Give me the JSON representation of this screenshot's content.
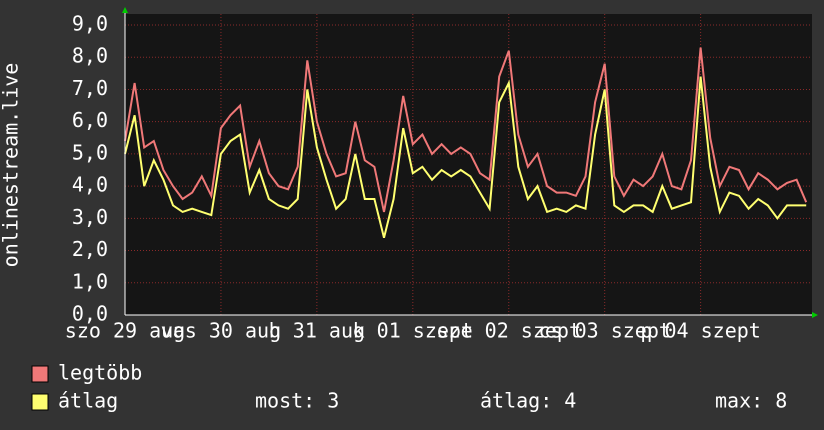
{
  "chart_data": {
    "type": "line",
    "ylabel": "onlinestream.live",
    "x": [
      0,
      0.1,
      0.2,
      0.3,
      0.4,
      0.5,
      0.6,
      0.7,
      0.8,
      0.9,
      1,
      1.1,
      1.2,
      1.3,
      1.4,
      1.5,
      1.6,
      1.7,
      1.8,
      1.9,
      2,
      2.1,
      2.2,
      2.3,
      2.4,
      2.5,
      2.6,
      2.7,
      2.8,
      2.9,
      3,
      3.1,
      3.2,
      3.3,
      3.4,
      3.5,
      3.6,
      3.7,
      3.8,
      3.9,
      4,
      4.1,
      4.2,
      4.3,
      4.4,
      4.5,
      4.6,
      4.7,
      4.8,
      4.9,
      5,
      5.1,
      5.2,
      5.3,
      5.4,
      5.5,
      5.6,
      5.7,
      5.8,
      5.9,
      6,
      6.1,
      6.2,
      6.3,
      6.4,
      6.5,
      6.6,
      6.7,
      6.8,
      6.9,
      7,
      7.1
    ],
    "xlim": [
      0,
      7.14
    ],
    "xticks": [
      {
        "value": 0,
        "label": "szo 29 aug"
      },
      {
        "value": 1,
        "label": "vas 30 aug"
      },
      {
        "value": 2,
        "label": "h 31 aug"
      },
      {
        "value": 3,
        "label": "k 01 szept"
      },
      {
        "value": 4,
        "label": "sze 02 szept"
      },
      {
        "value": 5,
        "label": "cs 03 szept"
      },
      {
        "value": 6,
        "label": "p 04 szept"
      }
    ],
    "ylim": [
      0,
      9
    ],
    "yticks": [
      {
        "value": 0,
        "label": "0,0"
      },
      {
        "value": 1,
        "label": "1,0"
      },
      {
        "value": 2,
        "label": "2,0"
      },
      {
        "value": 3,
        "label": "3,0"
      },
      {
        "value": 4,
        "label": "4,0"
      },
      {
        "value": 5,
        "label": "5,0"
      },
      {
        "value": 6,
        "label": "6,0"
      },
      {
        "value": 7,
        "label": "7,0"
      },
      {
        "value": 8,
        "label": "8,0"
      },
      {
        "value": 9,
        "label": "9,0"
      }
    ],
    "grid": true,
    "series": [
      {
        "name": "legtöbb",
        "color": "#f07878",
        "values": [
          5.4,
          7.2,
          5.2,
          5.4,
          4.5,
          4.0,
          3.6,
          3.8,
          4.3,
          3.7,
          5.8,
          6.2,
          6.5,
          4.6,
          5.4,
          4.4,
          4.0,
          3.9,
          4.6,
          7.9,
          6.0,
          5.0,
          4.3,
          4.4,
          6.0,
          4.8,
          4.6,
          3.2,
          4.8,
          6.8,
          5.3,
          5.6,
          5.0,
          5.3,
          5.0,
          5.2,
          5.0,
          4.4,
          4.2,
          7.4,
          8.2,
          5.6,
          4.6,
          5.0,
          4.0,
          3.8,
          3.8,
          3.7,
          4.3,
          6.6,
          7.8,
          4.3,
          3.7,
          4.2,
          4.0,
          4.3,
          5.0,
          4.0,
          3.9,
          4.8,
          8.3,
          5.5,
          4.0,
          4.6,
          4.5,
          3.9,
          4.4,
          4.2,
          3.9,
          4.1,
          4.2,
          3.5
        ]
      },
      {
        "name": "átlag",
        "color": "#ffff70",
        "values": [
          5.0,
          6.2,
          4.0,
          4.8,
          4.2,
          3.4,
          3.2,
          3.3,
          3.2,
          3.1,
          5.0,
          5.4,
          5.6,
          3.8,
          4.5,
          3.6,
          3.4,
          3.3,
          3.6,
          7.0,
          5.2,
          4.2,
          3.3,
          3.6,
          5.0,
          3.6,
          3.6,
          2.4,
          3.6,
          5.8,
          4.4,
          4.6,
          4.2,
          4.5,
          4.3,
          4.5,
          4.3,
          3.8,
          3.3,
          6.6,
          7.2,
          4.6,
          3.6,
          4.0,
          3.2,
          3.3,
          3.2,
          3.4,
          3.3,
          5.6,
          7.0,
          3.4,
          3.2,
          3.4,
          3.4,
          3.2,
          4.0,
          3.3,
          3.4,
          3.5,
          7.4,
          4.6,
          3.2,
          3.8,
          3.7,
          3.3,
          3.6,
          3.4,
          3.0,
          3.4,
          3.4,
          3.4
        ]
      }
    ],
    "legend_stats": [
      "most: 3",
      "átlag: 4",
      "max: 8"
    ]
  }
}
